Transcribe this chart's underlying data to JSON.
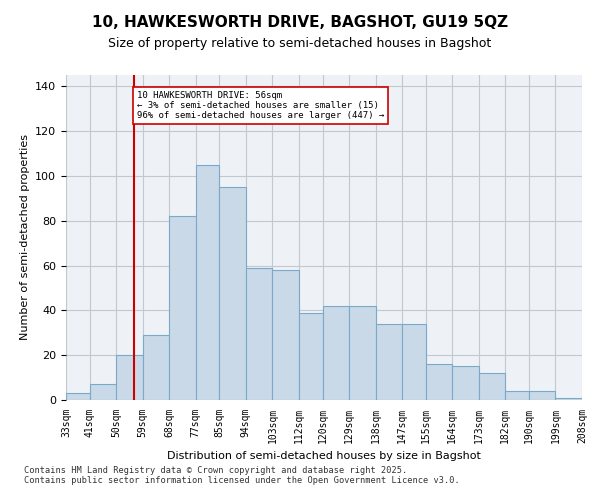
{
  "title1": "10, HAWKESWORTH DRIVE, BAGSHOT, GU19 5QZ",
  "title2": "Size of property relative to semi-detached houses in Bagshot",
  "xlabel": "Distribution of semi-detached houses by size in Bagshot",
  "ylabel": "Number of semi-detached properties",
  "bin_labels": [
    "33sqm",
    "41sqm",
    "50sqm",
    "59sqm",
    "68sqm",
    "77sqm",
    "85sqm",
    "94sqm",
    "103sqm",
    "112sqm",
    "120sqm",
    "129sqm",
    "138sqm",
    "147sqm",
    "155sqm",
    "164sqm",
    "173sqm",
    "182sqm",
    "190sqm",
    "199sqm",
    "208sqm"
  ],
  "bin_edges": [
    33,
    41,
    50,
    59,
    68,
    77,
    85,
    94,
    103,
    112,
    120,
    129,
    138,
    147,
    155,
    164,
    173,
    182,
    190,
    199,
    208
  ],
  "bar_heights": [
    3,
    7,
    20,
    29,
    82,
    105,
    95,
    59,
    58,
    39,
    42,
    42,
    34,
    34,
    16,
    15,
    12,
    4,
    4,
    1
  ],
  "bar_color": "#c9d9e8",
  "bar_edge_color": "#7aaac8",
  "grid_color": "#c0c8d0",
  "background_color": "#eef2f7",
  "vline_x": 56,
  "vline_color": "#cc0000",
  "annotation_text": "10 HAWKESWORTH DRIVE: 56sqm\n← 3% of semi-detached houses are smaller (15)\n96% of semi-detached houses are larger (447) →",
  "annotation_box_color": "white",
  "annotation_box_edge": "#cc0000",
  "footer_text": "Contains HM Land Registry data © Crown copyright and database right 2025.\nContains public sector information licensed under the Open Government Licence v3.0.",
  "ylim": [
    0,
    145
  ],
  "yticks": [
    0,
    20,
    40,
    60,
    80,
    100,
    120,
    140
  ]
}
